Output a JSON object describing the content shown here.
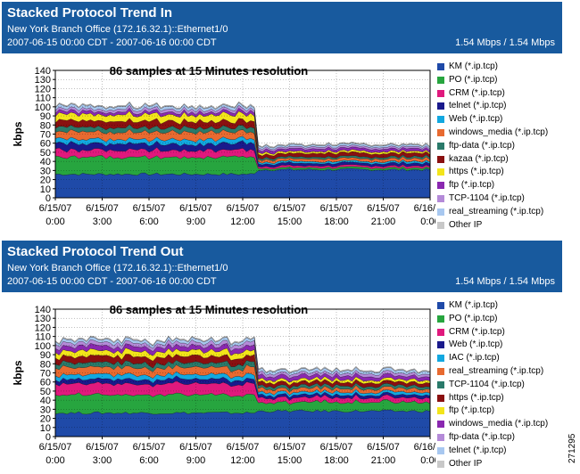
{
  "panels": [
    {
      "title": "Stacked Protocol Trend In",
      "device": "New York Branch Office (172.16.32.1)::Ethernet1/0",
      "period": "2007-06-15 00:00 CDT - 2007-06-16 00:00 CDT",
      "speed": "1.54 Mbps / 1.54 Mbps",
      "chart_data": {
        "type": "area",
        "title": "86 samples at 15 Minutes resolution",
        "ylabel": "kbps",
        "xlabel": "",
        "ylim": [
          0,
          140
        ],
        "yticks": [
          0,
          10,
          20,
          30,
          40,
          50,
          60,
          70,
          80,
          90,
          100,
          110,
          120,
          130,
          140
        ],
        "xticks": [
          {
            "line1": "6/15/07",
            "line2": "0:00"
          },
          {
            "line1": "6/15/07",
            "line2": "3:00"
          },
          {
            "line1": "6/15/07",
            "line2": "6:00"
          },
          {
            "line1": "6/15/07",
            "line2": "9:00"
          },
          {
            "line1": "6/15/07",
            "line2": "12:00"
          },
          {
            "line1": "6/15/07",
            "line2": "15:00"
          },
          {
            "line1": "6/15/07",
            "line2": "18:00"
          },
          {
            "line1": "6/15/07",
            "line2": "21:00"
          },
          {
            "line1": "6/16/07",
            "line2": "0:00"
          }
        ],
        "x_start": "6/15/07 0:00",
        "x_end": "6/16/07 0:00",
        "resolution_minutes": 15,
        "samples": 86,
        "change_time": "6/15/07 13:00",
        "grid": true,
        "legend_position": "right",
        "series": [
          {
            "name": "KM (*.ip.tcp)",
            "color": "#1f4aa8",
            "before": 26,
            "after": 31
          },
          {
            "name": "PO (*.ip.tcp)",
            "color": "#27a53f",
            "before": 19,
            "after": 2
          },
          {
            "name": "CRM (*.ip.tcp)",
            "color": "#e0197d",
            "before": 8,
            "after": 2
          },
          {
            "name": "telnet (*.ip.tcp)",
            "color": "#1a1a8c",
            "before": 7,
            "after": 3
          },
          {
            "name": "Web (*.ip.tcp)",
            "color": "#12a8e0",
            "before": 5,
            "after": 2
          },
          {
            "name": "windows_media (*.ip.tcp)",
            "color": "#e86a30",
            "before": 8,
            "after": 3
          },
          {
            "name": "ftp-data (*.ip.tcp)",
            "color": "#2a7a6a",
            "before": 5,
            "after": 2
          },
          {
            "name": "kazaa (*.ip.tcp)",
            "color": "#8a1010",
            "before": 7,
            "after": 4
          },
          {
            "name": "https (*.ip.tcp)",
            "color": "#f3e51a",
            "before": 7,
            "after": 2
          },
          {
            "name": "ftp (*.ip.tcp)",
            "color": "#8a28b0",
            "before": 3,
            "after": 3
          },
          {
            "name": "TCP-1104 (*.ip.tcp)",
            "color": "#b48ad8",
            "before": 3,
            "after": 2
          },
          {
            "name": "real_streaming (*.ip.tcp)",
            "color": "#a8c8f0",
            "before": 3,
            "after": 2
          },
          {
            "name": "Other IP",
            "color": "#c8c8c8",
            "before": 1,
            "after": 1
          }
        ]
      }
    },
    {
      "title": "Stacked Protocol Trend Out",
      "device": "New York Branch Office (172.16.32.1)::Ethernet1/0",
      "period": "2007-06-15 00:00 CDT - 2007-06-16 00:00 CDT",
      "speed": "1.54 Mbps / 1.54 Mbps",
      "chart_data": {
        "type": "area",
        "title": "86 samples at 15 Minutes resolution",
        "ylabel": "kbps",
        "xlabel": "",
        "ylim": [
          0,
          140
        ],
        "yticks": [
          0,
          10,
          20,
          30,
          40,
          50,
          60,
          70,
          80,
          90,
          100,
          110,
          120,
          130,
          140
        ],
        "xticks": [
          {
            "line1": "6/15/07",
            "line2": "0:00"
          },
          {
            "line1": "6/15/07",
            "line2": "3:00"
          },
          {
            "line1": "6/15/07",
            "line2": "6:00"
          },
          {
            "line1": "6/15/07",
            "line2": "9:00"
          },
          {
            "line1": "6/15/07",
            "line2": "12:00"
          },
          {
            "line1": "6/15/07",
            "line2": "15:00"
          },
          {
            "line1": "6/15/07",
            "line2": "18:00"
          },
          {
            "line1": "6/15/07",
            "line2": "21:00"
          },
          {
            "line1": "6/16/07",
            "line2": "0:00"
          }
        ],
        "x_start": "6/15/07 0:00",
        "x_end": "6/16/07 0:00",
        "resolution_minutes": 15,
        "samples": 86,
        "change_time": "6/15/07 13:00",
        "grid": true,
        "legend_position": "right",
        "series": [
          {
            "name": "KM (*.ip.tcp)",
            "color": "#1f4aa8",
            "before": 26,
            "after": 28
          },
          {
            "name": "PO (*.ip.tcp)",
            "color": "#27a53f",
            "before": 20,
            "after": 10
          },
          {
            "name": "CRM (*.ip.tcp)",
            "color": "#e0197d",
            "before": 12,
            "after": 5
          },
          {
            "name": "Web (*.ip.tcp)",
            "color": "#1a1a8c",
            "before": 5,
            "after": 3
          },
          {
            "name": "IAC (*.ip.tcp)",
            "color": "#12a8e0",
            "before": 5,
            "after": 3
          },
          {
            "name": "real_streaming (*.ip.tcp)",
            "color": "#e86a30",
            "before": 8,
            "after": 4
          },
          {
            "name": "TCP-1104 (*.ip.tcp)",
            "color": "#2a7a6a",
            "before": 5,
            "after": 3
          },
          {
            "name": "https (*.ip.tcp)",
            "color": "#8a1010",
            "before": 7,
            "after": 4
          },
          {
            "name": "ftp (*.ip.tcp)",
            "color": "#f3e51a",
            "before": 6,
            "after": 3
          },
          {
            "name": "windows_media (*.ip.tcp)",
            "color": "#8a28b0",
            "before": 5,
            "after": 4
          },
          {
            "name": "ftp-data (*.ip.tcp)",
            "color": "#b48ad8",
            "before": 4,
            "after": 3
          },
          {
            "name": "telnet (*.ip.tcp)",
            "color": "#a8c8f0",
            "before": 3,
            "after": 3
          },
          {
            "name": "Other IP",
            "color": "#c8c8c8",
            "before": 1,
            "after": 1
          }
        ]
      }
    }
  ],
  "side_code": "271295"
}
